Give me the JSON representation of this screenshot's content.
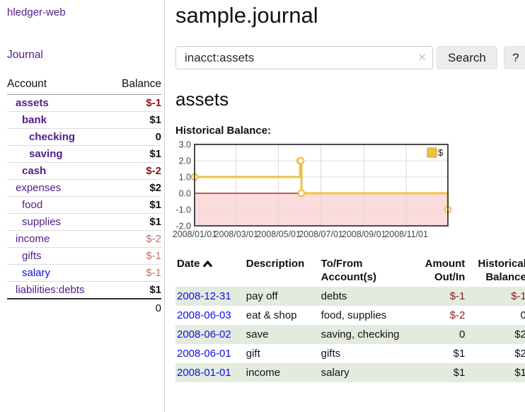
{
  "colors": {
    "link_purple": "#551a8b",
    "link_blue": "#0f0fe6",
    "negative_strong": "#8b1515",
    "negative_soft": "#c1706e",
    "row_shade_green": "#e3ebdf",
    "chart_line_gold": "#edc240",
    "chart_negative_region": "#fbdcdc",
    "chart_zero_line": "#a40000"
  },
  "sidebar": {
    "app_title": "hledger-web",
    "journal_link": "Journal",
    "table": {
      "headers": {
        "account": "Account",
        "balance": "Balance"
      },
      "accounts": [
        {
          "name": "assets",
          "balance": "$-1",
          "level": 1,
          "bold": true,
          "balance_class": "neg-strong"
        },
        {
          "name": "bank",
          "balance": "$1",
          "level": 2,
          "bold": true,
          "balance_class": "pos"
        },
        {
          "name": "checking",
          "balance": "0",
          "level": 3,
          "bold": true,
          "balance_class": "pos"
        },
        {
          "name": "saving",
          "balance": "$1",
          "level": 3,
          "bold": true,
          "balance_class": "pos"
        },
        {
          "name": "cash",
          "balance": "$-2",
          "level": 2,
          "bold": true,
          "balance_class": "neg-strong"
        },
        {
          "name": "expenses",
          "balance": "$2",
          "level": 1,
          "bold": false,
          "balance_class": "pos"
        },
        {
          "name": "food",
          "balance": "$1",
          "level": 2,
          "bold": false,
          "balance_class": "pos"
        },
        {
          "name": "supplies",
          "balance": "$1",
          "level": 2,
          "bold": false,
          "balance_class": "pos"
        },
        {
          "name": "income",
          "balance": "$-2",
          "level": 1,
          "bold": false,
          "balance_class": "neg-soft"
        },
        {
          "name": "gifts",
          "balance": "$-1",
          "level": 2,
          "bold": false,
          "balance_class": "neg-soft"
        },
        {
          "name": "salary",
          "balance": "$-1",
          "level": 2,
          "bold": false,
          "balance_class": "neg-soft",
          "link_blue": true
        },
        {
          "name": "liabilities:debts",
          "balance": "$1",
          "level": 1,
          "bold": false,
          "balance_class": "pos"
        }
      ],
      "total": "0"
    }
  },
  "header": {
    "title": "sample.journal"
  },
  "search": {
    "query": "inacct:assets",
    "clear_icon": "✕",
    "search_label": "Search",
    "help_label": "?"
  },
  "main": {
    "account_heading": "assets",
    "chart_label": "Historical Balance:"
  },
  "chart_data": {
    "type": "line",
    "step": true,
    "title": "Historical Balance",
    "series": [
      {
        "name": "$",
        "color": "#edc240",
        "points": [
          [
            "2008-01-01",
            1.0
          ],
          [
            "2008-06-01",
            2.0
          ],
          [
            "2008-06-02",
            2.0
          ],
          [
            "2008-06-03",
            0.0
          ],
          [
            "2008-12-31",
            -1.0
          ]
        ]
      }
    ],
    "xlim": [
      "2008-01-01",
      "2008-12-31"
    ],
    "ylim": [
      -2.0,
      3.0
    ],
    "x_ticks": [
      "2008/01/01",
      "2008/03/01",
      "2008/05/01",
      "2008/07/01",
      "2008/09/01",
      "2008/11/01"
    ],
    "y_ticks": [
      3.0,
      2.0,
      1.0,
      0.0,
      -1.0,
      -2.0
    ],
    "grid": true,
    "legend": {
      "label": "$",
      "position": "top-right"
    },
    "negative_region_color": "#fbdcdc",
    "zero_line_color": "#a40000"
  },
  "register": {
    "headers": {
      "date": "Date",
      "description": "Description",
      "accounts": "To/From Account(s)",
      "amount": "Amount Out/In",
      "balance": "Historical Balance"
    },
    "sort": "ascending",
    "rows": [
      {
        "date": "2008-12-31",
        "description": "pay off",
        "accounts": "debts",
        "amount": "$-1",
        "amount_neg": true,
        "balance": "$-1",
        "balance_neg": true,
        "shade": true
      },
      {
        "date": "2008-06-03",
        "description": "eat & shop",
        "accounts": "food, supplies",
        "amount": "$-2",
        "amount_neg": true,
        "balance": "0",
        "balance_neg": false,
        "shade": false
      },
      {
        "date": "2008-06-02",
        "description": "save",
        "accounts": "saving, checking",
        "amount": "0",
        "amount_neg": false,
        "balance": "$2",
        "balance_neg": false,
        "shade": true
      },
      {
        "date": "2008-06-01",
        "description": "gift",
        "accounts": "gifts",
        "amount": "$1",
        "amount_neg": false,
        "balance": "$2",
        "balance_neg": false,
        "shade": false
      },
      {
        "date": "2008-01-01",
        "description": "income",
        "accounts": "salary",
        "amount": "$1",
        "amount_neg": false,
        "balance": "$1",
        "balance_neg": false,
        "shade": true
      }
    ]
  }
}
